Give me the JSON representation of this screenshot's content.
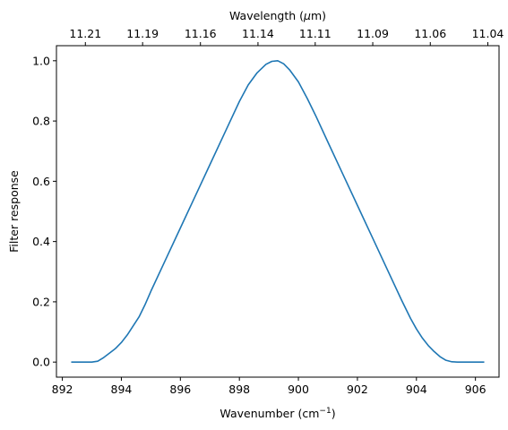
{
  "chart_data": {
    "type": "line",
    "xlabel": "Wavenumber (cm",
    "xlabel_sup": "−1",
    "xlabel_close": ")",
    "ylabel": "Filter response",
    "top_axis_label_prefix": "Wavelength (",
    "top_axis_label_mu": "μ",
    "top_axis_label_suffix": "m)",
    "xlim": [
      891.8,
      906.8
    ],
    "ylim": [
      -0.05,
      1.05
    ],
    "x_ticks": [
      "892",
      "894",
      "896",
      "898",
      "900",
      "902",
      "904",
      "906"
    ],
    "y_ticks": [
      "0.0",
      "0.2",
      "0.4",
      "0.6",
      "0.8",
      "1.0"
    ],
    "top_ticks": [
      {
        "value": 892.78,
        "label": "11.21"
      },
      {
        "value": 894.72,
        "label": "11.19"
      },
      {
        "value": 896.68,
        "label": "11.16"
      },
      {
        "value": 898.63,
        "label": "11.14"
      },
      {
        "value": 900.57,
        "label": "11.11"
      },
      {
        "value": 902.52,
        "label": "11.09"
      },
      {
        "value": 904.47,
        "label": "11.06"
      },
      {
        "value": 906.42,
        "label": "11.04"
      }
    ],
    "line_color": "#1f77b4",
    "grid": false,
    "series": [
      {
        "x": [
          892.3,
          892.7,
          893.0,
          893.2,
          893.4,
          893.6,
          893.8,
          894.0,
          894.2,
          894.4,
          894.6,
          894.8,
          895.0,
          895.5,
          896.0,
          896.5,
          897.0,
          897.5,
          898.0,
          898.3,
          898.6,
          898.9,
          899.1,
          899.3,
          899.5,
          899.7,
          900.0,
          900.3,
          900.6,
          901.0,
          901.5,
          902.0,
          902.5,
          903.0,
          903.5,
          903.8,
          904.0,
          904.2,
          904.4,
          904.6,
          904.8,
          905.0,
          905.2,
          905.4,
          905.7,
          906.0,
          906.3
        ],
        "y": [
          0.0,
          0.0,
          0.0,
          0.003,
          0.015,
          0.03,
          0.045,
          0.065,
          0.09,
          0.12,
          0.15,
          0.19,
          0.235,
          0.34,
          0.445,
          0.55,
          0.655,
          0.76,
          0.865,
          0.92,
          0.96,
          0.988,
          0.998,
          1.0,
          0.99,
          0.97,
          0.93,
          0.875,
          0.815,
          0.73,
          0.625,
          0.52,
          0.415,
          0.31,
          0.205,
          0.145,
          0.11,
          0.08,
          0.055,
          0.035,
          0.018,
          0.006,
          0.001,
          0.0,
          0.0,
          0.0,
          0.0
        ]
      }
    ]
  }
}
